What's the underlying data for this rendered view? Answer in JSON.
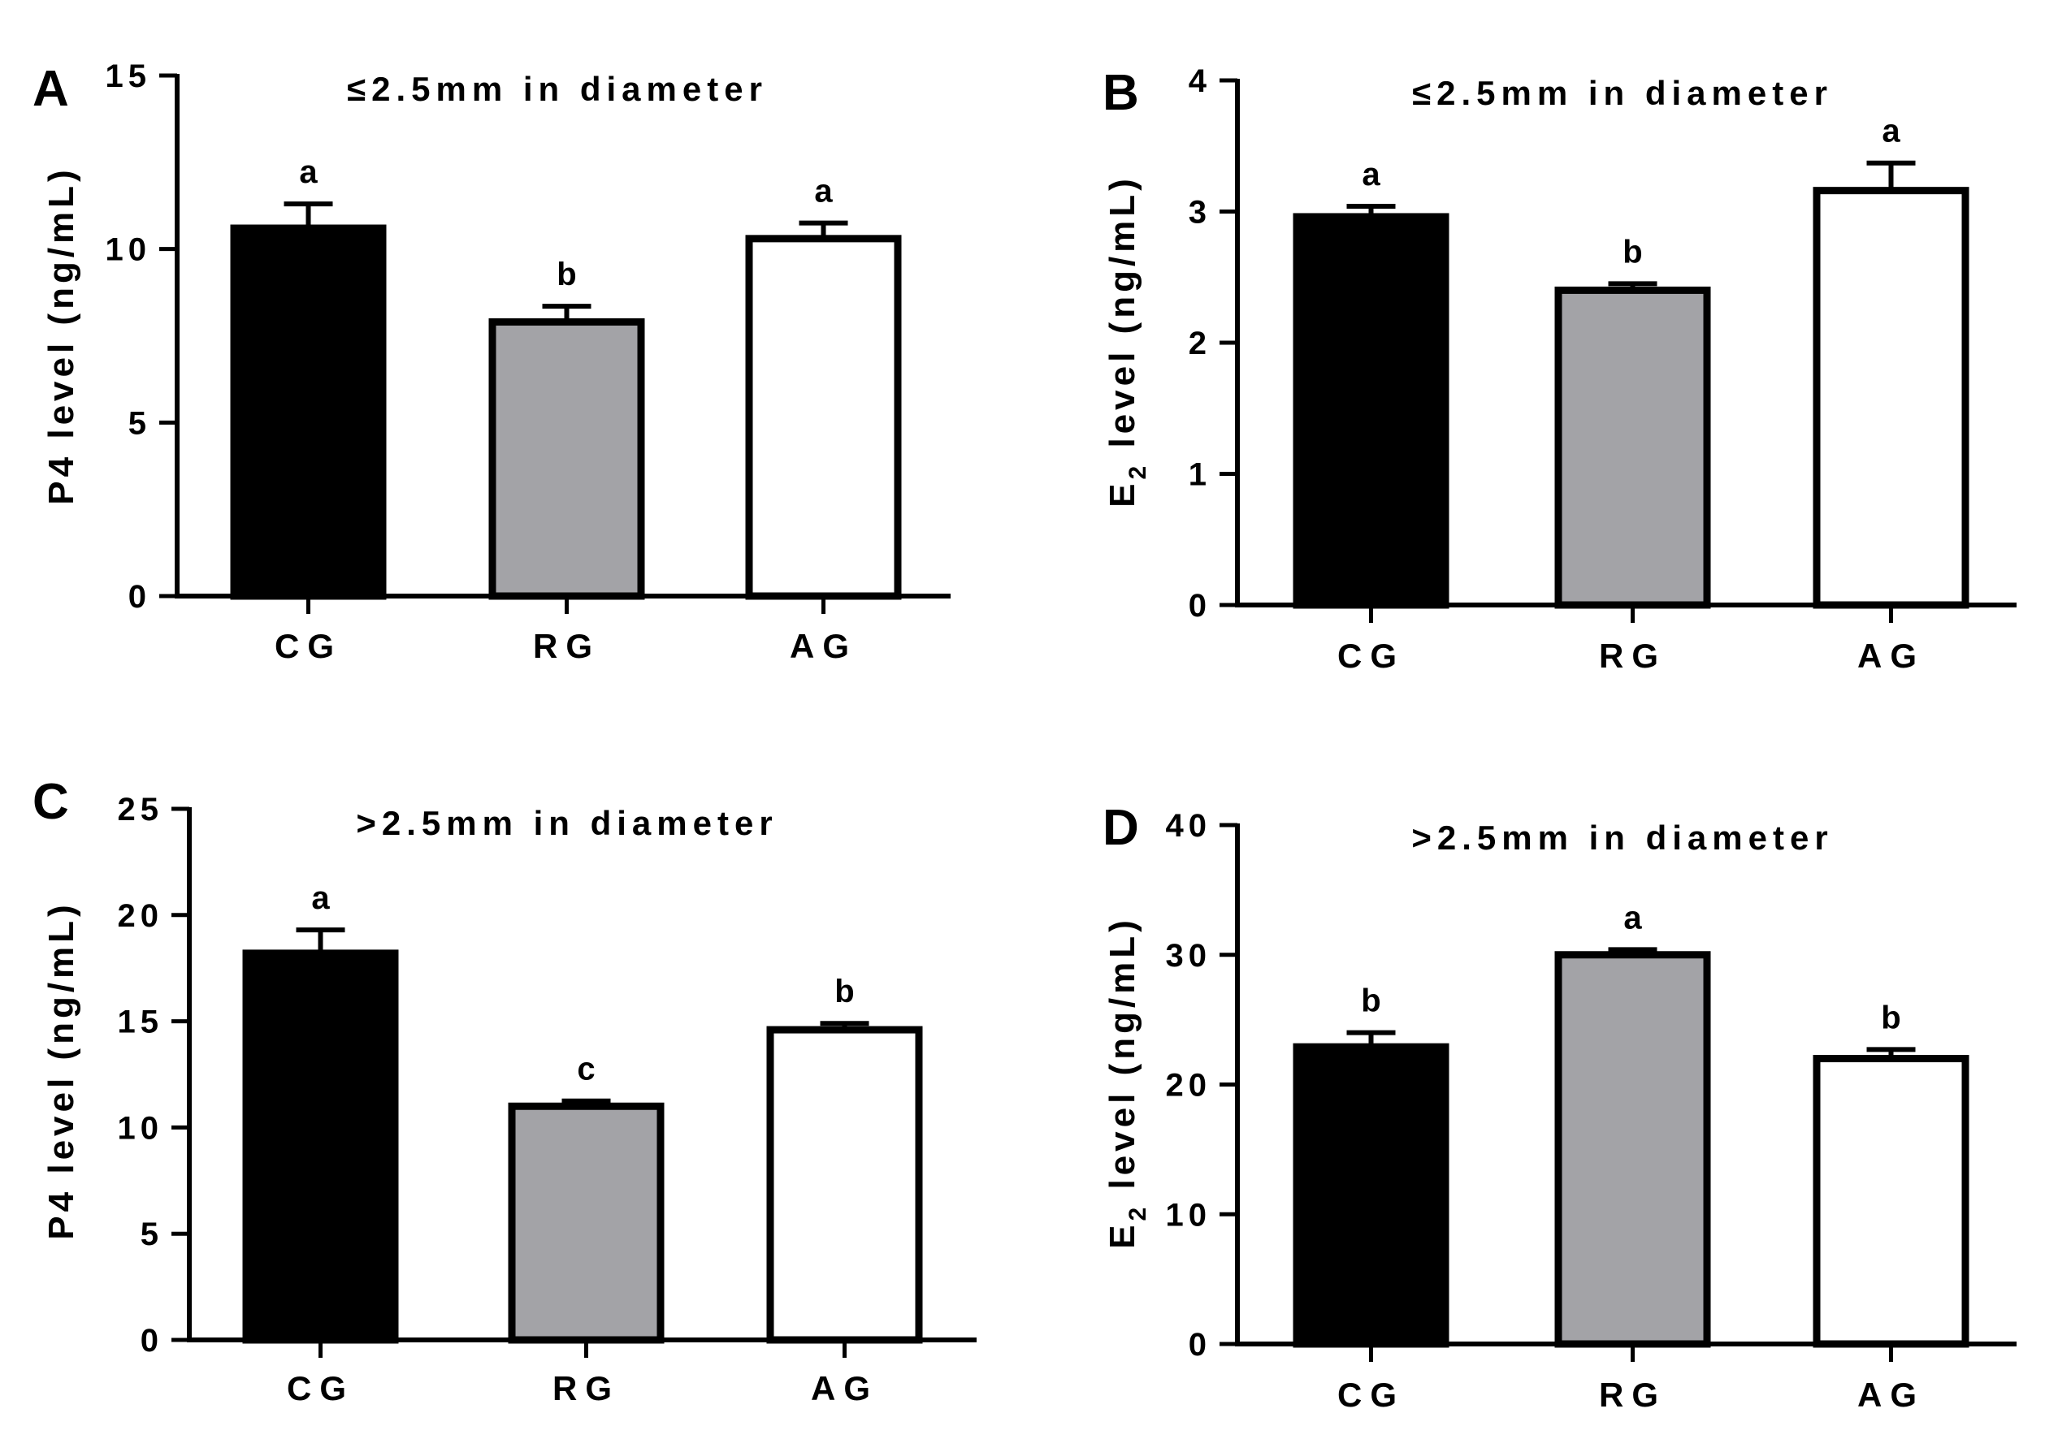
{
  "chart_data": [
    {
      "panel_label": "A",
      "type": "bar",
      "title": "≤2.5mm in diameter",
      "ylabel_main": "P4 level (ng/mL)",
      "ylabel_sub": "",
      "ylabel_tail": "",
      "categories": [
        "CG",
        "RG",
        "AG"
      ],
      "values": [
        10.6,
        7.9,
        10.3
      ],
      "errors": [
        0.7,
        0.45,
        0.45
      ],
      "significance": [
        "a",
        "b",
        "a"
      ],
      "ylim": [
        0,
        15
      ],
      "yticks": [
        0,
        5,
        10,
        15
      ],
      "ytick_labels": [
        "0",
        "5",
        "10",
        "15"
      ],
      "grid": false,
      "legend": "none"
    },
    {
      "panel_label": "B",
      "type": "bar",
      "title": "≤2.5mm in diameter",
      "ylabel_main": "E",
      "ylabel_sub": "2",
      "ylabel_tail": " level (ng/mL)",
      "categories": [
        "CG",
        "RG",
        "AG"
      ],
      "values": [
        2.96,
        2.4,
        3.16
      ],
      "errors": [
        0.08,
        0.05,
        0.21
      ],
      "significance": [
        "a",
        "b",
        "a"
      ],
      "ylim": [
        0,
        4
      ],
      "yticks": [
        0,
        1,
        2,
        3,
        4
      ],
      "ytick_labels": [
        "0",
        "1",
        "2",
        "3",
        "4"
      ],
      "grid": false,
      "legend": "none"
    },
    {
      "panel_label": "C",
      "type": "bar",
      "title": ">2.5mm in diameter",
      "ylabel_main": "P4 level (ng/mL)",
      "ylabel_sub": "",
      "ylabel_tail": "",
      "categories": [
        "CG",
        "RG",
        "AG"
      ],
      "values": [
        18.2,
        11.0,
        14.6
      ],
      "errors": [
        1.1,
        0.25,
        0.3
      ],
      "significance": [
        "a",
        "c",
        "b"
      ],
      "ylim": [
        0,
        25
      ],
      "yticks": [
        0,
        5,
        10,
        15,
        20,
        25
      ],
      "ytick_labels": [
        "0",
        "5",
        "10",
        "15",
        "20",
        "25"
      ],
      "grid": false,
      "legend": "none"
    },
    {
      "panel_label": "D",
      "type": "bar",
      "title": ">2.5mm in diameter",
      "ylabel_main": "E",
      "ylabel_sub": "2",
      "ylabel_tail": " level (ng/mL)",
      "categories": [
        "CG",
        "RG",
        "AG"
      ],
      "values": [
        22.9,
        30.0,
        22.0
      ],
      "errors": [
        1.1,
        0.4,
        0.7
      ],
      "significance": [
        "b",
        "a",
        "b"
      ],
      "ylim": [
        0,
        40
      ],
      "yticks": [
        0,
        10,
        20,
        30,
        40
      ],
      "ytick_labels": [
        "0",
        "10",
        "20",
        "30",
        "40"
      ],
      "grid": false,
      "legend": "none"
    }
  ],
  "colors": {
    "CG": "#000000",
    "RG": "#a3a3a7",
    "AG": "#ffffff",
    "stroke": "#000000"
  }
}
